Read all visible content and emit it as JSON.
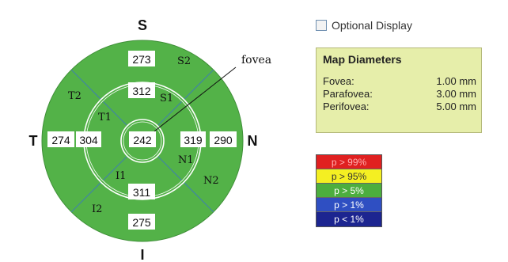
{
  "optional_display": {
    "label": "Optional Display",
    "checked": false
  },
  "map_diameters": {
    "title": "Map Diameters",
    "rows": [
      {
        "label": "Fovea:",
        "value": "1.00 mm"
      },
      {
        "label": "Parafovea:",
        "value": "3.00 mm"
      },
      {
        "label": "Perifovea:",
        "value": "5.00 mm"
      }
    ]
  },
  "legend": [
    {
      "label": "p > 99%",
      "color": "#e02020",
      "text_color": "#ffb0b0"
    },
    {
      "label": "p > 95%",
      "color": "#f4ef22",
      "text_color": "#333333"
    },
    {
      "label": "p > 5%",
      "color": "#4cae3e",
      "text_color": "#ffffff"
    },
    {
      "label": "p > 1%",
      "color": "#2f4fc2",
      "text_color": "#ffffff"
    },
    {
      "label": "p < 1%",
      "color": "#1c2590",
      "text_color": "#ffffff"
    }
  ],
  "chart_data": {
    "type": "diagram",
    "fill_color": "#53b248",
    "orientation": {
      "top": "S",
      "bottom": "I",
      "left": "T",
      "right": "N"
    },
    "annotation": "fovea",
    "sectors": [
      {
        "id": "center",
        "value": 242
      },
      {
        "id": "S1",
        "region": "inner-superior",
        "value": 312
      },
      {
        "id": "N1",
        "region": "inner-nasal",
        "value": 319
      },
      {
        "id": "I1",
        "region": "inner-inferior",
        "value": 311
      },
      {
        "id": "T1",
        "region": "inner-temporal",
        "value": 304
      },
      {
        "id": "S2",
        "region": "outer-superior",
        "value": 273
      },
      {
        "id": "N2",
        "region": "outer-nasal",
        "value": 290
      },
      {
        "id": "I2",
        "region": "outer-inferior",
        "value": 275
      },
      {
        "id": "T2",
        "region": "outer-temporal",
        "value": 274
      }
    ]
  }
}
